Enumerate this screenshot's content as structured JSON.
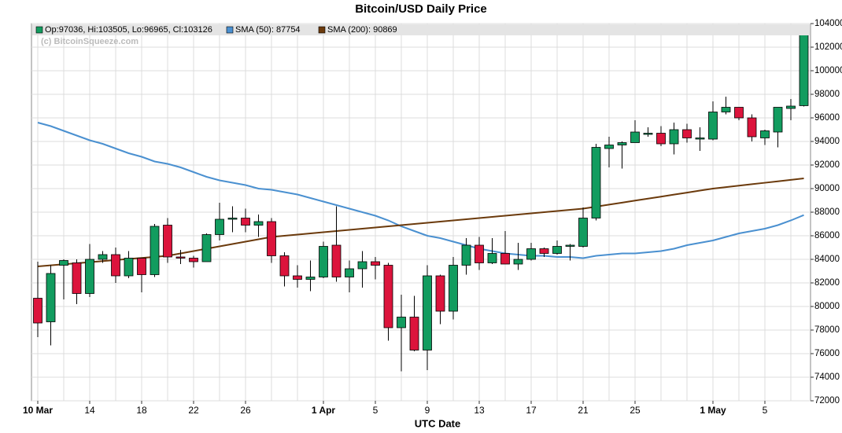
{
  "chart_data": {
    "type": "candlestick",
    "title": "Bitcoin/USD Daily Price",
    "xlabel": "UTC Date",
    "watermark": "(c) BitcoinSqueeze.com",
    "candle_name": "Op:97036, Hi:103505, Lo:96965, Cl:103126",
    "up_color": "#129c5f",
    "down_color": "#dc143c",
    "categories": [
      "10 Mar",
      null,
      null,
      null,
      "14",
      null,
      null,
      null,
      "18",
      null,
      null,
      null,
      "22",
      null,
      null,
      null,
      "26",
      null,
      null,
      null,
      null,
      null,
      "1 Apr",
      null,
      null,
      null,
      "5",
      null,
      null,
      null,
      "9",
      null,
      null,
      null,
      "13",
      null,
      null,
      null,
      "17",
      null,
      null,
      null,
      "21",
      null,
      null,
      null,
      "25",
      null,
      null,
      null,
      null,
      null,
      "1 May",
      null,
      null,
      null,
      "5",
      null,
      null,
      null
    ],
    "open": [
      80700,
      78700,
      83500,
      83700,
      81100,
      84000,
      84400,
      82600,
      84100,
      82700,
      86900,
      84200,
      84100,
      83800,
      86100,
      87400,
      87500,
      86900,
      87200,
      84300,
      82600,
      82300,
      82500,
      85200,
      82500,
      83200,
      83800,
      83500,
      78200,
      79100,
      76300,
      82600,
      79600,
      83500,
      85200,
      83700,
      84500,
      83600,
      84000,
      84900,
      84500,
      85100,
      85100,
      87500,
      93400,
      93700,
      93900,
      94600,
      94700,
      93800,
      95000,
      94200,
      94200,
      96500,
      96900,
      96000,
      94300,
      94800,
      96800,
      97036
    ],
    "high": [
      83800,
      83500,
      84000,
      84000,
      85300,
      84700,
      85000,
      84700,
      84100,
      87000,
      87500,
      84800,
      84300,
      86200,
      88800,
      88500,
      88300,
      87800,
      87500,
      84600,
      83500,
      83900,
      85500,
      88500,
      83900,
      84700,
      84200,
      83700,
      81000,
      80900,
      83500,
      82700,
      84200,
      85800,
      85900,
      85800,
      86400,
      85400,
      85400,
      85000,
      85600,
      85300,
      88400,
      93800,
      94400,
      94000,
      95800,
      95200,
      95300,
      95600,
      95500,
      95200,
      97400,
      97800,
      96900,
      96300,
      95000,
      96900,
      97600,
      103505
    ],
    "low": [
      77400,
      76700,
      80600,
      80200,
      80800,
      83700,
      82000,
      82400,
      81200,
      82500,
      83700,
      83600,
      83300,
      83800,
      85600,
      86300,
      86300,
      85900,
      83700,
      81700,
      81600,
      81300,
      82400,
      82100,
      81200,
      81600,
      82300,
      77100,
      74500,
      76200,
      74600,
      78500,
      78900,
      82700,
      83100,
      83600,
      83600,
      83100,
      83900,
      84200,
      84400,
      83900,
      85000,
      87300,
      91800,
      91700,
      93900,
      94400,
      93600,
      92900,
      93900,
      93200,
      94100,
      96300,
      95800,
      94000,
      93700,
      93500,
      95800,
      96965
    ],
    "close": [
      78600,
      82800,
      83900,
      81100,
      84000,
      84400,
      82600,
      84100,
      82700,
      86800,
      84200,
      84100,
      83800,
      86100,
      87400,
      87500,
      86900,
      87200,
      84300,
      82600,
      82300,
      82500,
      85100,
      82500,
      83200,
      83800,
      83500,
      78200,
      79100,
      76300,
      82600,
      79600,
      83500,
      85200,
      83700,
      84500,
      83600,
      84000,
      84900,
      84500,
      85100,
      85200,
      87500,
      93500,
      93700,
      93900,
      94800,
      94700,
      93800,
      95000,
      94300,
      94300,
      96500,
      96900,
      96000,
      94400,
      94900,
      96900,
      97000,
      103126
    ],
    "series": [
      {
        "name": "SMA (50): 87754",
        "color": "#4a90d0",
        "values": [
          95600,
          95300,
          94900,
          94500,
          94100,
          93800,
          93400,
          93000,
          92700,
          92300,
          92100,
          91800,
          91400,
          91000,
          90700,
          90500,
          90300,
          90000,
          89900,
          89700,
          89500,
          89200,
          88900,
          88600,
          88300,
          88000,
          87700,
          87300,
          86800,
          86400,
          86000,
          85800,
          85500,
          85200,
          84900,
          84700,
          84500,
          84400,
          84300,
          84300,
          84200,
          84200,
          84100,
          84300,
          84400,
          84500,
          84500,
          84600,
          84700,
          84900,
          85200,
          85400,
          85600,
          85900,
          86200,
          86400,
          86600,
          86900,
          87300,
          87754
        ]
      },
      {
        "name": "SMA (200): 90869",
        "color": "#6b3a0c",
        "values": [
          83400,
          83490,
          83580,
          83670,
          83760,
          83850,
          83940,
          84030,
          84120,
          84210,
          84300,
          84500,
          84700,
          84900,
          85100,
          85300,
          85500,
          85700,
          85900,
          86000,
          86100,
          86200,
          86300,
          86400,
          86500,
          86600,
          86700,
          86800,
          86900,
          87000,
          87100,
          87200,
          87300,
          87400,
          87500,
          87600,
          87700,
          87800,
          87900,
          88000,
          88100,
          88200,
          88300,
          88470,
          88640,
          88810,
          88980,
          89150,
          89320,
          89490,
          89660,
          89830,
          90000,
          90124,
          90248,
          90372,
          90496,
          90620,
          90744,
          90869
        ]
      }
    ],
    "ylim": [
      72000,
      104000
    ],
    "yticks": [
      72000,
      74000,
      76000,
      78000,
      80000,
      82000,
      84000,
      86000,
      88000,
      90000,
      92000,
      94000,
      96000,
      98000,
      100000,
      102000,
      104000
    ],
    "grid": true
  }
}
